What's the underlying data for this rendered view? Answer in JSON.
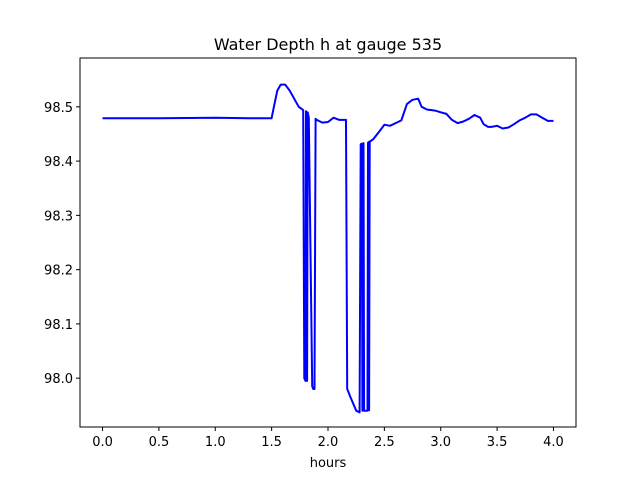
{
  "chart_data": {
    "type": "line",
    "title": "Water Depth h at gauge 535",
    "xlabel": "hours",
    "ylabel": "",
    "xlim": [
      -0.2,
      4.2
    ],
    "ylim": [
      97.91,
      98.59
    ],
    "grid": false,
    "xticks": [
      0.0,
      0.5,
      1.0,
      1.5,
      2.0,
      2.5,
      3.0,
      3.5,
      4.0
    ],
    "xtick_labels": [
      "0.0",
      "0.5",
      "1.0",
      "1.5",
      "2.0",
      "2.5",
      "3.0",
      "3.5",
      "4.0"
    ],
    "yticks": [
      98.0,
      98.1,
      98.2,
      98.3,
      98.4,
      98.5
    ],
    "ytick_labels": [
      "98.0",
      "98.1",
      "98.2",
      "98.3",
      "98.4",
      "98.5"
    ],
    "series": [
      {
        "color": "#0000ff",
        "x": [
          0.0,
          0.5,
          1.0,
          1.3,
          1.5,
          1.52,
          1.55,
          1.58,
          1.62,
          1.66,
          1.7,
          1.74,
          1.78,
          1.79,
          1.8,
          1.805,
          1.81,
          1.815,
          1.82,
          1.825,
          1.83,
          1.86,
          1.87,
          1.88,
          1.89,
          1.9,
          1.95,
          2.0,
          2.05,
          2.1,
          2.14,
          2.16,
          2.17,
          2.2,
          2.25,
          2.28,
          2.29,
          2.3,
          2.305,
          2.31,
          2.315,
          2.32,
          2.34,
          2.35,
          2.355,
          2.36,
          2.365,
          2.37,
          2.4,
          2.45,
          2.5,
          2.55,
          2.6,
          2.65,
          2.7,
          2.75,
          2.8,
          2.83,
          2.88,
          2.92,
          2.95,
          3.0,
          3.05,
          3.1,
          3.15,
          3.2,
          3.25,
          3.3,
          3.35,
          3.38,
          3.42,
          3.45,
          3.5,
          3.55,
          3.6,
          3.65,
          3.7,
          3.75,
          3.8,
          3.85,
          3.9,
          3.95,
          4.0
        ],
        "values": [
          98.479,
          98.479,
          98.48,
          98.479,
          98.479,
          98.5,
          98.53,
          98.541,
          98.541,
          98.53,
          98.515,
          98.5,
          98.494,
          98.0,
          97.995,
          98.492,
          98.488,
          97.995,
          98.49,
          98.485,
          98.48,
          97.985,
          97.98,
          97.98,
          98.478,
          98.476,
          98.471,
          98.472,
          98.48,
          98.476,
          98.476,
          98.476,
          97.98,
          97.965,
          97.94,
          97.937,
          98.431,
          98.432,
          97.94,
          98.432,
          98.433,
          97.94,
          97.94,
          97.94,
          98.434,
          98.435,
          97.941,
          98.436,
          98.44,
          98.453,
          98.467,
          98.465,
          98.47,
          98.475,
          98.505,
          98.513,
          98.515,
          98.5,
          98.495,
          98.494,
          98.493,
          98.49,
          98.487,
          98.476,
          98.47,
          98.473,
          98.478,
          98.485,
          98.48,
          98.468,
          98.463,
          98.463,
          98.465,
          98.46,
          98.462,
          98.468,
          98.475,
          98.48,
          98.486,
          98.486,
          98.48,
          98.474,
          98.474
        ]
      }
    ]
  }
}
